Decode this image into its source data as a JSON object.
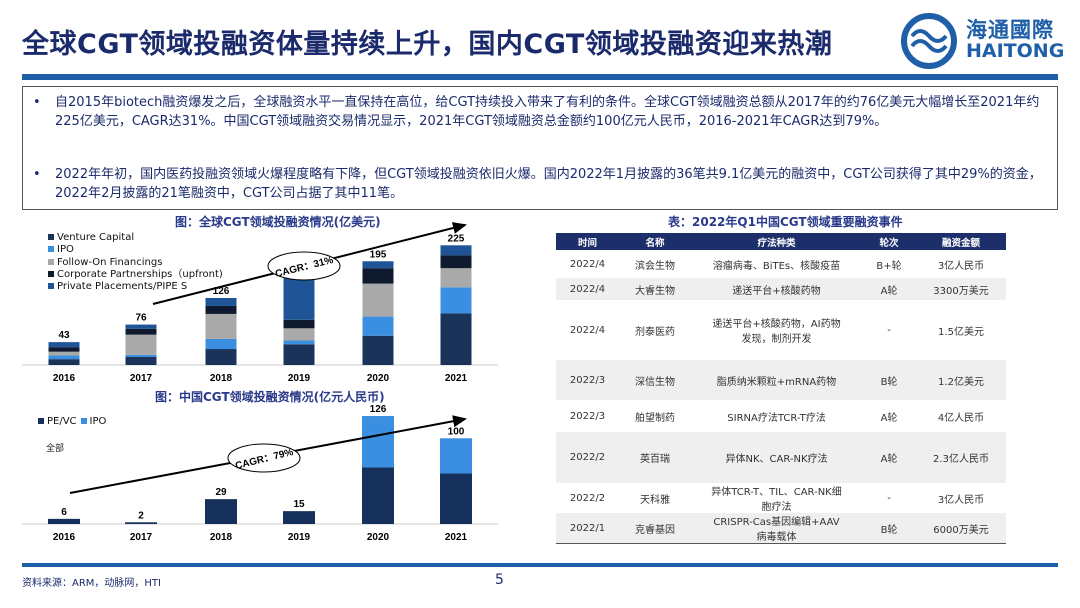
{
  "title": "全球CGT领域投融资体量持续上升，国内CGT领域投融资迎来热潮",
  "logo": {
    "zh": "海通國際",
    "en": "HAITONG"
  },
  "bullets": [
    "自2015年biotech融资爆发之后，全球融资水平一直保持在高位，给CGT持续投入带来了有利的条件。全球CGT领域融资总额从2017年的约76亿美元大幅增长至2021年约225亿美元，CAGR达31%。中国CGT领域融资交易情况显示，2021年CGT领域融资总金额约100亿元人民币，2016-2021年CAGR达到79%。",
    "2022年年初，国内医药投融资领域火爆程度略有下降，但CGT领域投融资依旧火爆。国内2022年1月披露的36笔共9.1亿美元的融资中，CGT公司获得了其中29%的资金，2022年2月披露的21笔融资中，CGT公司占据了其中11笔。"
  ],
  "bullet_symbol": "•",
  "chart_data": [
    {
      "type": "bar",
      "stacked": true,
      "title": "图：全球CGT领域投融资情况(亿美元)",
      "categories": [
        "2016",
        "2017",
        "2018",
        "2019",
        "2020",
        "2021"
      ],
      "totals_labels": [
        "43",
        "76",
        "126",
        "",
        "195",
        "225"
      ],
      "series": [
        {
          "name": "Venture Capital",
          "color": "#1a3358",
          "values": [
            11,
            15,
            30,
            39,
            55,
            97
          ]
        },
        {
          "name": "IPO",
          "color": "#3b8fe0",
          "values": [
            7,
            4,
            19,
            7,
            36,
            49
          ]
        },
        {
          "name": "Follow-On Financings",
          "color": "#a9a9a9",
          "values": [
            7,
            38,
            47,
            23,
            62,
            36
          ]
        },
        {
          "name": "Corporate Partnerships（upfront)",
          "color": "#101a2e",
          "values": [
            8,
            11,
            15,
            16,
            29,
            24
          ]
        },
        {
          "name": "Private Placements/PIPE S",
          "color": "#1f5596",
          "values": [
            10,
            8,
            15,
            88,
            13,
            19
          ]
        }
      ],
      "annotation": "CAGR：31%",
      "legend": "top-left",
      "grid": false
    },
    {
      "type": "bar",
      "stacked": true,
      "title": "图：中国CGT领域投融资情况(亿元人民币)",
      "categories": [
        "2016",
        "2017",
        "2018",
        "2019",
        "2020",
        "2021"
      ],
      "totals_labels": [
        "6",
        "2",
        "29",
        "15",
        "126",
        "100"
      ],
      "series": [
        {
          "name": "PE/VC",
          "color": "#15305a",
          "values": [
            6,
            2,
            29,
            15,
            66,
            59
          ]
        },
        {
          "name": "IPO",
          "color": "#3b8fe0",
          "values": [
            0,
            0,
            0,
            0,
            60,
            41
          ]
        }
      ],
      "annotation": "CAGR：79%",
      "note": "全部",
      "legend": "top-left",
      "grid": false
    }
  ],
  "table": {
    "title": "表：2022年Q1中国CGT领域重要融资事件",
    "headers": [
      "时间",
      "名称",
      "疗法种类",
      "轮次",
      "融资金额"
    ],
    "rows": [
      [
        "2022/4",
        "滨会生物",
        "溶瘤病毒、BiTEs、核酸疫苗",
        "B+轮",
        "3亿人民币"
      ],
      [
        "2022/4",
        "大睿生物",
        "递送平台+核酸药物",
        "A轮",
        "3300万美元"
      ],
      [
        "2022/4",
        "剂泰医药",
        "递送平台+核酸药物，AI药物发现，制剂开发",
        "-",
        "1.5亿美元"
      ],
      [
        "2022/3",
        "深信生物",
        "脂质纳米颗粒+mRNA药物",
        "B轮",
        "1.2亿美元"
      ],
      [
        "2022/3",
        "舶望制药",
        "SIRNA疗法TCR-T疗法",
        "A轮",
        "4亿人民币"
      ],
      [
        "2022/2",
        "英百瑞",
        "异体NK、CAR-NK疗法",
        "A轮",
        "2.3亿人民币"
      ],
      [
        "2022/2",
        "天科雅",
        "异体TCR-T、TIL、CAR-NK细胞疗法",
        "-",
        "3亿人民币"
      ],
      [
        "2022/1",
        "克睿基因",
        "CRISPR-Cas基因编辑+AAV病毒载体",
        "B轮",
        "6000万美元"
      ]
    ]
  },
  "footer": {
    "source": "资料来源：ARM，动脉网，HTI",
    "page": "5"
  }
}
